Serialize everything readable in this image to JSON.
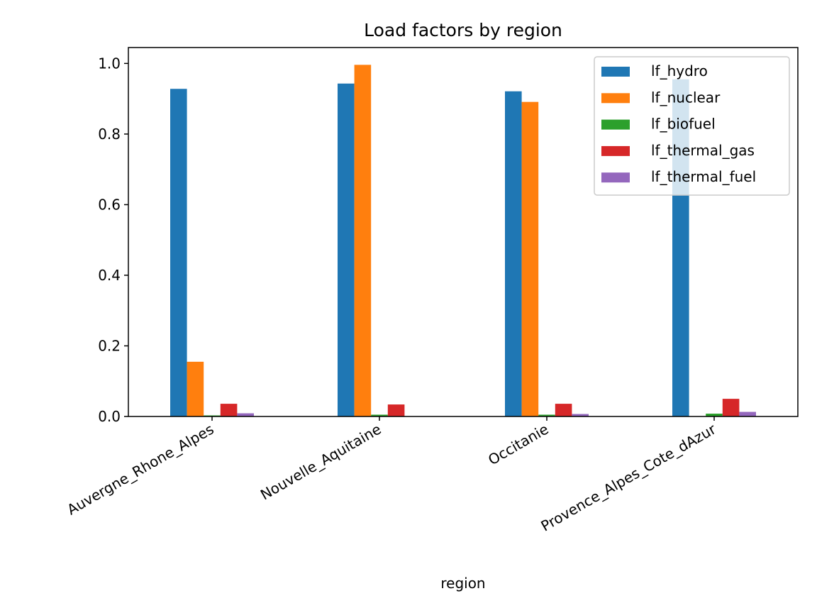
{
  "chart_data": {
    "type": "bar",
    "title": "Load factors by region",
    "xlabel": "region",
    "ylabel": "",
    "ylim": [
      0,
      1.045
    ],
    "yticks": [
      "0.0",
      "0.2",
      "0.4",
      "0.6",
      "0.8",
      "1.0"
    ],
    "ytick_values": [
      0.0,
      0.2,
      0.4,
      0.6,
      0.8,
      1.0
    ],
    "categories": [
      "Auvergne_Rhone_Alpes",
      "Nouvelle_Aquitaine",
      "Occitanie",
      "Provence_Alpes_Cote_dAzur"
    ],
    "series": [
      {
        "name": "lf_hydro",
        "color": "#1f77b4",
        "values": [
          0.928,
          0.943,
          0.921,
          0.955
        ]
      },
      {
        "name": "lf_nuclear",
        "color": "#ff7f0e",
        "values": [
          0.155,
          0.996,
          0.891,
          0.0
        ]
      },
      {
        "name": "lf_biofuel",
        "color": "#2ca02c",
        "values": [
          0.003,
          0.005,
          0.005,
          0.008
        ]
      },
      {
        "name": "lf_thermal_gas",
        "color": "#d62728",
        "values": [
          0.036,
          0.034,
          0.036,
          0.05
        ]
      },
      {
        "name": "lf_thermal_fuel",
        "color": "#9467bd",
        "values": [
          0.009,
          0.0,
          0.007,
          0.013
        ]
      }
    ],
    "legend_position": "top-right",
    "grid": false
  }
}
